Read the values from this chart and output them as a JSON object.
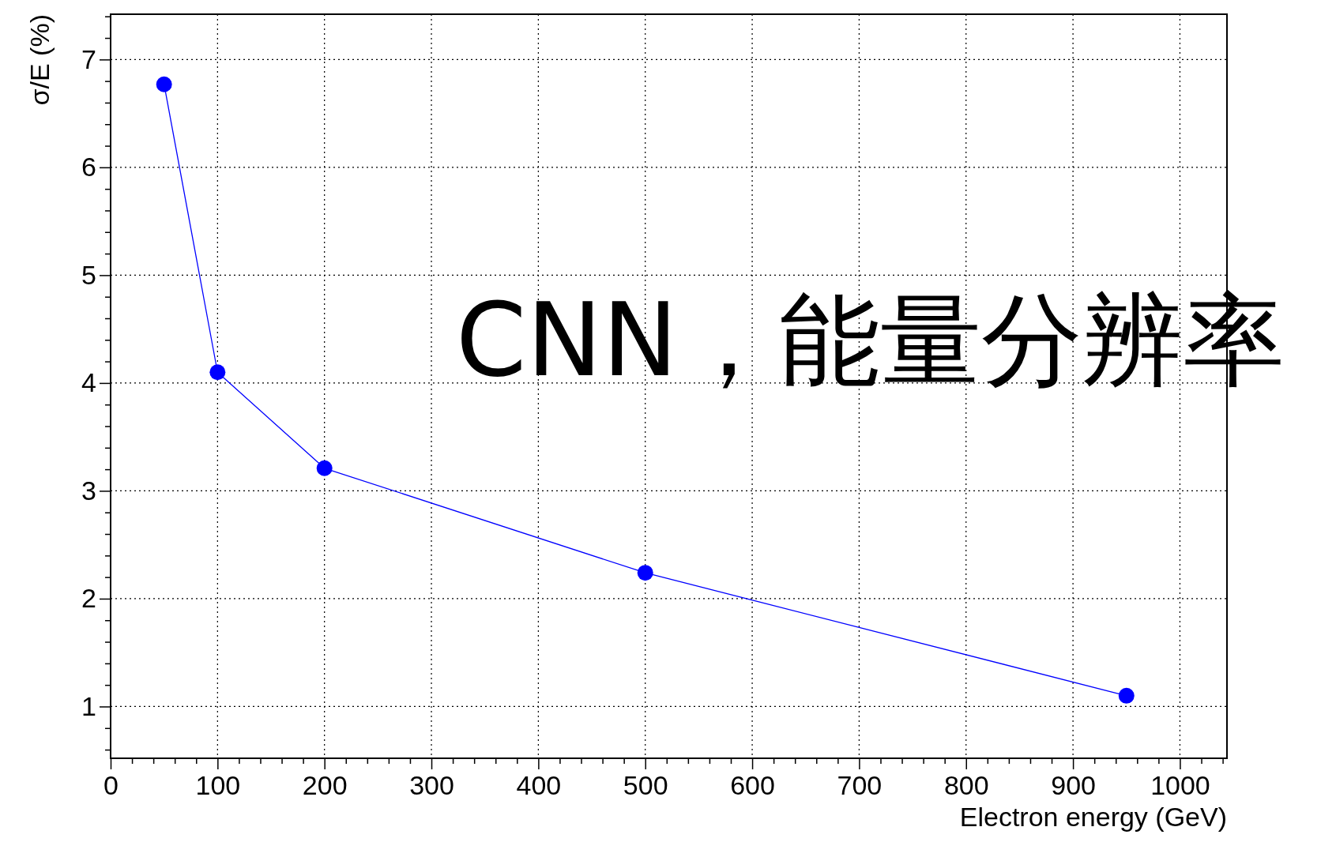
{
  "chart_data": {
    "type": "line",
    "xlabel": "Electron energy (GeV)",
    "ylabel": "σ/E (%)",
    "annotations": [
      "CNN，能量分辨率"
    ],
    "x": [
      50,
      100,
      200,
      500,
      950
    ],
    "series": [
      {
        "color": "#0000ff",
        "values": [
          6.77,
          4.1,
          3.21,
          2.24,
          1.1
        ]
      }
    ],
    "xlim": [
      0,
      1044
    ],
    "xticks": [
      0,
      {
        "value": 20,
        "label": null
      },
      {
        "value": 40,
        "label": null
      },
      {
        "value": 60,
        "label": null
      },
      {
        "value": 80,
        "label": null
      },
      100,
      {
        "value": 120,
        "label": null
      },
      {
        "value": 140,
        "label": null
      },
      {
        "value": 160,
        "label": null
      },
      {
        "value": 180,
        "label": null
      },
      200,
      {
        "value": 220,
        "label": null
      },
      {
        "value": 240,
        "label": null
      },
      {
        "value": 260,
        "label": null
      },
      {
        "value": 280,
        "label": null
      },
      300,
      {
        "value": 320,
        "label": null
      },
      {
        "value": 340,
        "label": null
      },
      {
        "value": 360,
        "label": null
      },
      {
        "value": 380,
        "label": null
      },
      400,
      {
        "value": 420,
        "label": null
      },
      {
        "value": 440,
        "label": null
      },
      {
        "value": 460,
        "label": null
      },
      {
        "value": 480,
        "label": null
      },
      500,
      {
        "value": 520,
        "label": null
      },
      {
        "value": 540,
        "label": null
      },
      {
        "value": 560,
        "label": null
      },
      {
        "value": 580,
        "label": null
      },
      600,
      {
        "value": 620,
        "label": null
      },
      {
        "value": 640,
        "label": null
      },
      {
        "value": 660,
        "label": null
      },
      {
        "value": 680,
        "label": null
      },
      700,
      {
        "value": 720,
        "label": null
      },
      {
        "value": 740,
        "label": null
      },
      {
        "value": 760,
        "label": null
      },
      {
        "value": 780,
        "label": null
      },
      800,
      {
        "value": 820,
        "label": null
      },
      {
        "value": 840,
        "label": null
      },
      {
        "value": 860,
        "label": null
      },
      {
        "value": 880,
        "label": null
      },
      900,
      {
        "value": 920,
        "label": null
      },
      {
        "value": 940,
        "label": null
      },
      {
        "value": 960,
        "label": null
      },
      {
        "value": 980,
        "label": null
      },
      1000,
      {
        "value": 1020,
        "label": null
      },
      {
        "value": 1040,
        "label": null
      }
    ],
    "ylim": [
      0.52,
      7.42
    ],
    "yticks": [
      {
        "value": 0.6,
        "label": null
      },
      {
        "value": 0.8,
        "label": null
      },
      1,
      {
        "value": 1.2,
        "label": null
      },
      {
        "value": 1.4,
        "label": null
      },
      {
        "value": 1.6,
        "label": null
      },
      {
        "value": 1.8,
        "label": null
      },
      2,
      {
        "value": 2.2,
        "label": null
      },
      {
        "value": 2.4,
        "label": null
      },
      {
        "value": 2.6,
        "label": null
      },
      {
        "value": 2.8,
        "label": null
      },
      3,
      {
        "value": 3.2,
        "label": null
      },
      {
        "value": 3.4,
        "label": null
      },
      {
        "value": 3.6,
        "label": null
      },
      {
        "value": 3.8,
        "label": null
      },
      4,
      {
        "value": 4.2,
        "label": null
      },
      {
        "value": 4.4,
        "label": null
      },
      {
        "value": 4.6,
        "label": null
      },
      {
        "value": 4.8,
        "label": null
      },
      5,
      {
        "value": 5.2,
        "label": null
      },
      {
        "value": 5.4,
        "label": null
      },
      {
        "value": 5.6,
        "label": null
      },
      {
        "value": 5.8,
        "label": null
      },
      6,
      {
        "value": 6.2,
        "label": null
      },
      {
        "value": 6.4,
        "label": null
      },
      {
        "value": 6.6,
        "label": null
      },
      {
        "value": 6.8,
        "label": null
      },
      7,
      {
        "value": 7.2,
        "label": null
      },
      {
        "value": 7.4,
        "label": null
      }
    ],
    "grid": true,
    "marker": "circle",
    "line_style": "solid"
  }
}
